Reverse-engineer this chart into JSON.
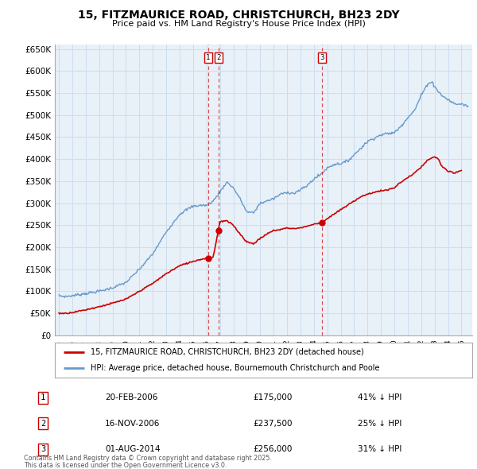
{
  "title": "15, FITZMAURICE ROAD, CHRISTCHURCH, BH23 2DY",
  "subtitle": "Price paid vs. HM Land Registry's House Price Index (HPI)",
  "footer1": "Contains HM Land Registry data © Crown copyright and database right 2025.",
  "footer2": "This data is licensed under the Open Government Licence v3.0.",
  "legend_red": "15, FITZMAURICE ROAD, CHRISTCHURCH, BH23 2DY (detached house)",
  "legend_blue": "HPI: Average price, detached house, Bournemouth Christchurch and Poole",
  "red_color": "#cc0000",
  "blue_color": "#6699cc",
  "grid_color": "#ccddee",
  "bg_color": "#ffffff",
  "plot_bg": "#e8f0f8",
  "ylim": [
    0,
    660000
  ],
  "yticks": [
    0,
    50000,
    100000,
    150000,
    200000,
    250000,
    300000,
    350000,
    400000,
    450000,
    500000,
    550000,
    600000,
    650000
  ],
  "xlim_start": 1994.7,
  "xlim_end": 2025.8,
  "transactions": [
    {
      "num": 1,
      "date": "20-FEB-2006",
      "price": 175000,
      "pct": "41% ↓ HPI",
      "year": 2006.12
    },
    {
      "num": 2,
      "date": "16-NOV-2006",
      "price": 237500,
      "pct": "25% ↓ HPI",
      "year": 2006.88
    },
    {
      "num": 3,
      "date": "01-AUG-2014",
      "price": 256000,
      "pct": "31% ↓ HPI",
      "year": 2014.58
    }
  ],
  "vline_color": "#cc0000",
  "box_color_fill": "#ffffff",
  "box_color_edge": "#cc0000"
}
